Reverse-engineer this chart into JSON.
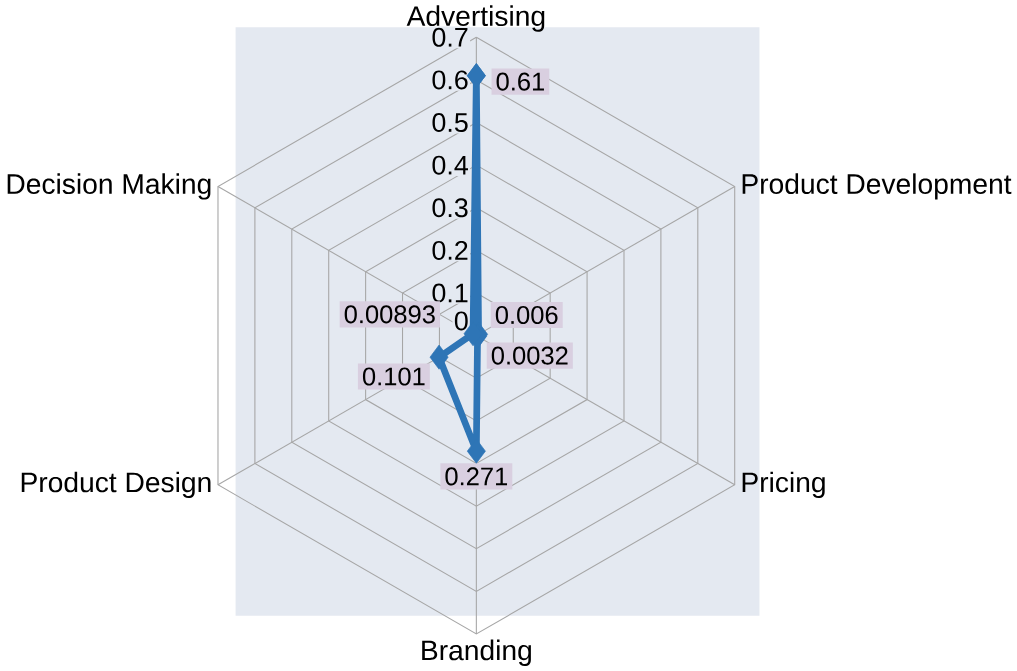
{
  "chart_data": {
    "type": "radar",
    "categories": [
      "Advertising",
      "Product Development",
      "Pricing",
      "Branding",
      "Product Design",
      "Decision Making"
    ],
    "series": [
      {
        "color": "#2e75b6",
        "values": [
          0.61,
          0.006,
          0.0032,
          0.271,
          0.101,
          0.00893
        ]
      }
    ],
    "ylim": [
      0,
      0.7
    ],
    "yticks": [
      0,
      0.1,
      0.2,
      0.3,
      0.4,
      0.5,
      0.6,
      0.7
    ],
    "grid": true,
    "marker": "diamond",
    "data_labels": true
  }
}
